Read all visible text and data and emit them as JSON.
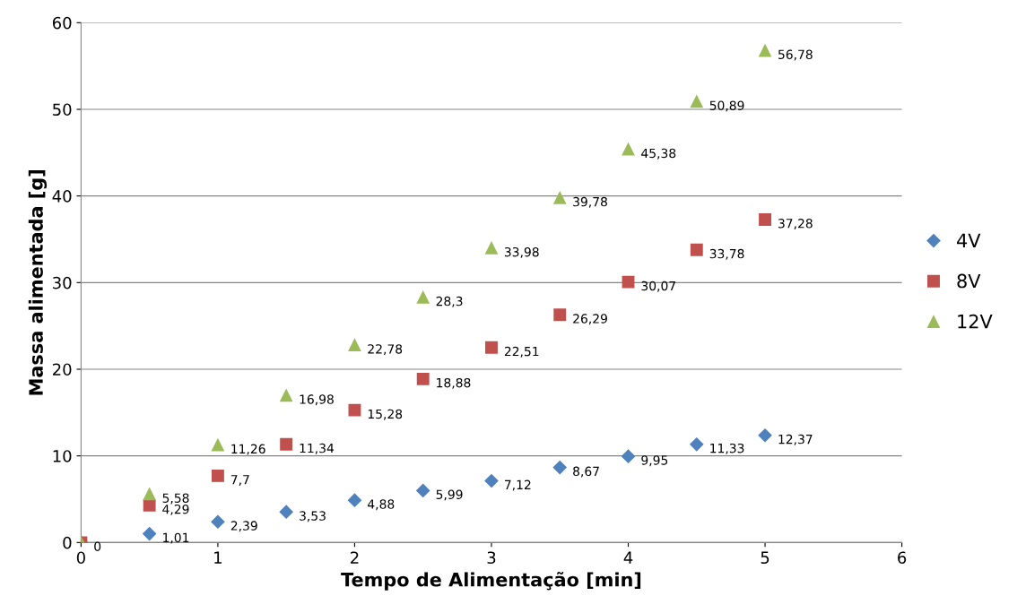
{
  "chart_data": {
    "type": "scatter",
    "xlabel": "Tempo de Alimentação [min]",
    "ylabel": "Massa alimentada [g]",
    "x": [
      0,
      0.5,
      1,
      1.5,
      2,
      2.5,
      3,
      3.5,
      4,
      4.5,
      5
    ],
    "xlim": [
      0,
      6
    ],
    "xticks": [
      0,
      1,
      2,
      3,
      4,
      5,
      6
    ],
    "ylim": [
      0,
      60
    ],
    "yticks": [
      0,
      10,
      20,
      30,
      40,
      50,
      60
    ],
    "grid": "y",
    "legend": "right",
    "series": [
      {
        "name": "4V",
        "color": "#4f81bd",
        "marker": "diamond",
        "values": [
          0,
          1.01,
          2.39,
          3.53,
          4.88,
          5.99,
          7.12,
          8.67,
          9.95,
          11.33,
          12.37
        ],
        "value_labels": [
          "0",
          "1,01",
          "2,39",
          "3,53",
          "4,88",
          "5,99",
          "7,12",
          "8,67",
          "9,95",
          "11,33",
          "12,37"
        ]
      },
      {
        "name": "8V",
        "color": "#c0504d",
        "marker": "square",
        "values": [
          0,
          4.29,
          7.7,
          11.34,
          15.28,
          18.88,
          22.51,
          26.29,
          30.07,
          33.78,
          37.28
        ],
        "value_labels": [
          null,
          "4,29",
          "7,7",
          "11,34",
          "15,28",
          "18,88",
          "22,51",
          "26,29",
          "30,07",
          "33,78",
          "37,28"
        ]
      },
      {
        "name": "12V",
        "color": "#9bbb59",
        "marker": "triangle",
        "values": [
          0,
          5.58,
          11.26,
          16.98,
          22.78,
          28.3,
          33.98,
          39.78,
          45.38,
          50.89,
          56.78
        ],
        "value_labels": [
          null,
          "5,58",
          "11,26",
          "16,98",
          "22,78",
          "28,3",
          "33,98",
          "39,78",
          "45,38",
          "50,89",
          "56,78"
        ]
      }
    ]
  }
}
